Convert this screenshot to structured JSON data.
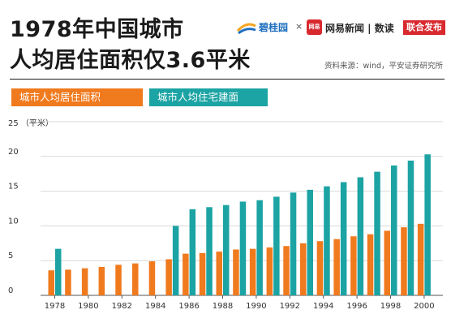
{
  "header": {
    "title_line1": "1978年中国城市",
    "title_line2": "人均居住面积仅3.6平米",
    "brand_bgy": "碧桂园",
    "times": "×",
    "brand_wy_logo": "网易",
    "brand_wy": "网易新闻 | 数读",
    "brand_release": "联合发布",
    "source": "资料来源：wind，平安证券研究所"
  },
  "colors": {
    "series_a": "#f07a1e",
    "series_b": "#1ca3a3",
    "grid": "#d9d9d9",
    "axis": "#333333"
  },
  "chart_data": {
    "type": "bar",
    "categories": [
      "1978",
      "1979",
      "1980",
      "1981",
      "1982",
      "1983",
      "1984",
      "1985",
      "1986",
      "1987",
      "1988",
      "1989",
      "1990",
      "1991",
      "1992",
      "1993",
      "1994",
      "1995",
      "1996",
      "1997",
      "1998",
      "1999",
      "2000"
    ],
    "x_tick_labels": [
      "1978",
      "1980",
      "1982",
      "1984",
      "1986",
      "1988",
      "1990",
      "1992",
      "1994",
      "1996",
      "1998",
      "2000"
    ],
    "ylabel": "（平米）",
    "ylim": [
      0,
      25
    ],
    "yticks": [
      0,
      5,
      10,
      15,
      20,
      25
    ],
    "grid": true,
    "series": [
      {
        "name": "城市人均居住面积",
        "values": [
          3.6,
          3.7,
          3.9,
          4.1,
          4.4,
          4.6,
          4.9,
          5.2,
          6.0,
          6.1,
          6.3,
          6.6,
          6.7,
          6.9,
          7.1,
          7.5,
          7.8,
          8.1,
          8.5,
          8.8,
          9.3,
          9.8,
          10.3
        ]
      },
      {
        "name": "城市人均住宅建面",
        "values": [
          6.7,
          null,
          null,
          null,
          null,
          null,
          null,
          10.0,
          12.4,
          12.7,
          13.0,
          13.5,
          13.7,
          14.2,
          14.8,
          15.2,
          15.7,
          16.3,
          17.0,
          17.8,
          18.7,
          19.4,
          20.3
        ]
      }
    ]
  }
}
